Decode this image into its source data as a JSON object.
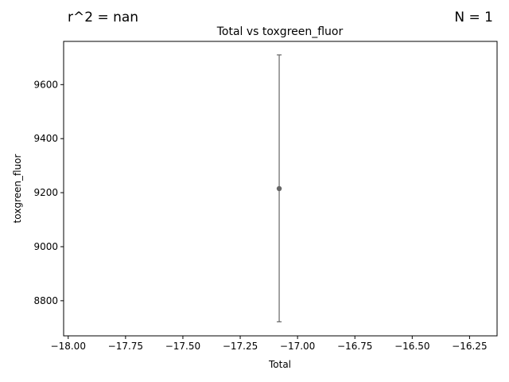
{
  "annotations": {
    "r2": "r^2 = nan",
    "n": "N = 1"
  },
  "chart_data": {
    "type": "scatter",
    "title": "Total vs toxgreen_fluor",
    "xlabel": "Total",
    "ylabel": "toxgreen_fluor",
    "xlim": [
      -18.02,
      -16.13
    ],
    "ylim": [
      8670,
      9760
    ],
    "xticks": [
      -18.0,
      -17.75,
      -17.5,
      -17.25,
      -17.0,
      -16.75,
      -16.5,
      -16.25
    ],
    "xtick_labels": [
      "−18.00",
      "−17.75",
      "−17.50",
      "−17.25",
      "−17.00",
      "−16.75",
      "−16.50",
      "−16.25"
    ],
    "yticks": [
      8800,
      9000,
      9200,
      9400,
      9600
    ],
    "ytick_labels": [
      "8800",
      "9000",
      "9200",
      "9400",
      "9600"
    ],
    "grid": false,
    "points": [
      {
        "x": -17.08,
        "y": 9215,
        "err_low": 8722,
        "err_high": 9710
      }
    ],
    "colors": {
      "point": "#666666",
      "errorbar": "#666666",
      "axis": "#000000"
    }
  }
}
